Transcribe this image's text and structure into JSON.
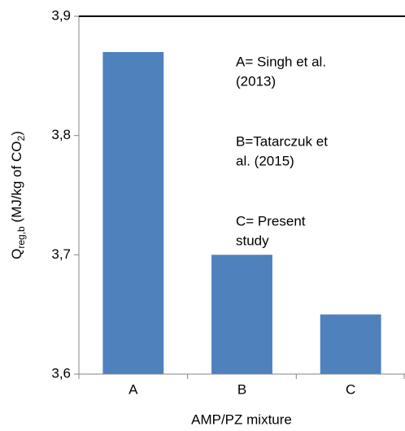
{
  "chart_data": {
    "type": "bar",
    "categories": [
      "A",
      "B",
      "C"
    ],
    "values": [
      3.87,
      3.7,
      3.65
    ],
    "color": "#4f81bd",
    "ylim": [
      3.6,
      3.9
    ],
    "yticks": [
      {
        "value": 3.6,
        "label": "3,6"
      },
      {
        "value": 3.7,
        "label": "3,7"
      },
      {
        "value": 3.8,
        "label": "3,8"
      },
      {
        "value": 3.9,
        "label": "3,9"
      }
    ],
    "xlabel": "AMP/PZ mixture",
    "ylabel_parts": [
      "Q",
      "reg,b",
      " (MJ/kg of CO",
      "2",
      ")"
    ],
    "annotations": [
      [
        "A= Singh et al.",
        "(2013)"
      ],
      [
        "B=Tatarczuk et",
        "al. (2015)"
      ],
      [
        "C= Present",
        "study"
      ]
    ],
    "grid": false
  }
}
